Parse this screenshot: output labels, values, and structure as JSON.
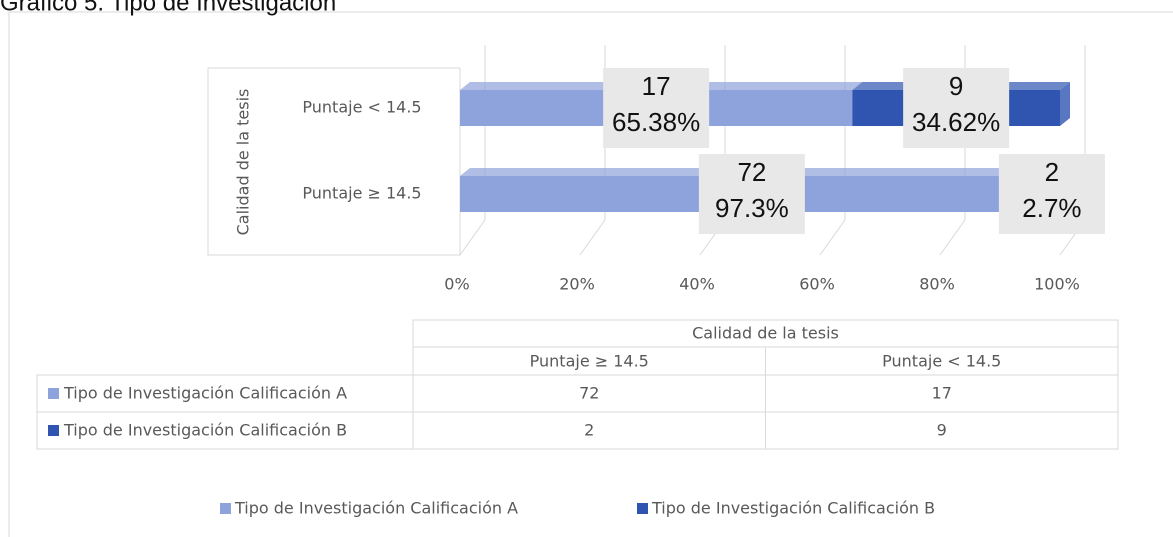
{
  "chart_data": {
    "type": "bar100h",
    "title": "Gráfico 5. Tipo de Investigación",
    "category_group": "Calidad de la tesis",
    "categories": [
      "Puntaje ≥ 14.5",
      "Puntaje < 14.5"
    ],
    "series": [
      {
        "name": "Tipo de Investigación Calificación A",
        "color": "#8ea2dc",
        "counts": [
          72,
          17
        ],
        "values": [
          97.3,
          65.38
        ],
        "value_labels": [
          "97.3%",
          "65.38%"
        ]
      },
      {
        "name": "Tipo de Investigación Calificación B",
        "color": "#2f55b0",
        "counts": [
          2,
          9
        ],
        "values": [
          2.7,
          34.62
        ],
        "value_labels": [
          "2.7%",
          "34.62%"
        ]
      }
    ],
    "xlim": [
      0,
      100
    ],
    "xticks": [
      {
        "value": 0,
        "label": "0%"
      },
      {
        "value": 20,
        "label": "20%"
      },
      {
        "value": 40,
        "label": "40%"
      },
      {
        "value": 60,
        "label": "60%"
      },
      {
        "value": 80,
        "label": "80%"
      },
      {
        "value": 100,
        "label": "100%"
      }
    ],
    "grid": true,
    "legend": "bottom",
    "data_table": true
  }
}
